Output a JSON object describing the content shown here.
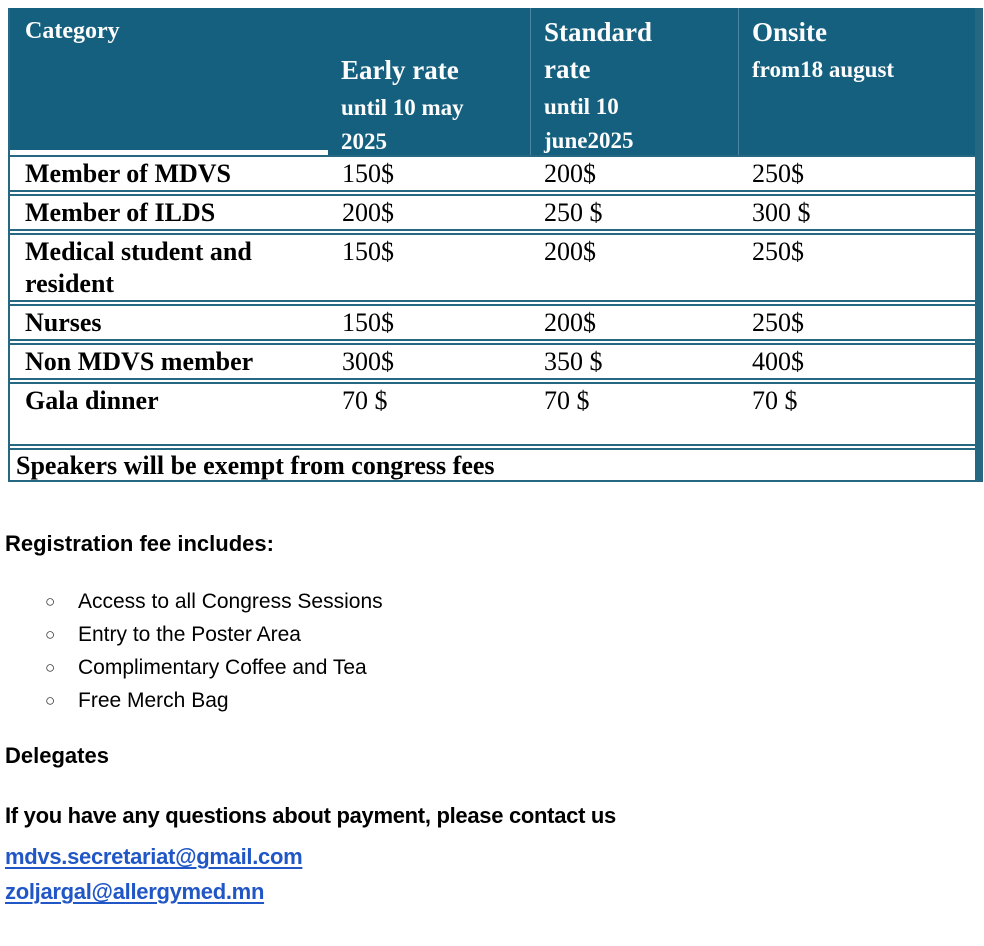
{
  "table": {
    "header": {
      "category": "Category",
      "columns": [
        {
          "title": "Early rate",
          "subtitle": "until 10 may\n2025"
        },
        {
          "title": "Standard\nrate",
          "subtitle": "until 10\njune2025"
        },
        {
          "title": "Onsite",
          "subtitle": "from18 august"
        }
      ]
    },
    "rows": [
      {
        "category": "Member of MDVS",
        "early": "150$",
        "standard": "200$",
        "onsite": "250$"
      },
      {
        "category": "Member of ILDS",
        "early": "200$",
        "standard": "250 $",
        "onsite": "300 $"
      },
      {
        "category": "Medical student and\nresident",
        "early": "150$",
        "standard": "200$",
        "onsite": "250$"
      },
      {
        "category": "Nurses",
        "early": "150$",
        "standard": "200$",
        "onsite": "250$"
      },
      {
        "category": "Non MDVS member",
        "early": "300$",
        "standard": "350 $",
        "onsite": "400$"
      },
      {
        "category": "Gala dinner",
        "early": "70 $",
        "standard": "70 $",
        "onsite": "70 $"
      }
    ],
    "footer_note": "Speakers will be exempt from congress fees"
  },
  "includes": {
    "heading": "Registration fee includes:",
    "bullet_icon": "○",
    "items": [
      "Access to all Congress Sessions",
      "Entry to the Poster Area",
      "Complimentary Coffee and Tea",
      "Free Merch Bag"
    ]
  },
  "delegates_label": "Delegates",
  "contact": {
    "text": "If you have any questions about payment, please contact us",
    "emails": [
      "mdvs.secretariat@gmail.com",
      "zoljargal@allergymed.mn"
    ]
  },
  "colors": {
    "header_bg": "#16607F",
    "table_border": "#266781",
    "header_divider": "#4d87a1",
    "link": "#2156C6"
  }
}
